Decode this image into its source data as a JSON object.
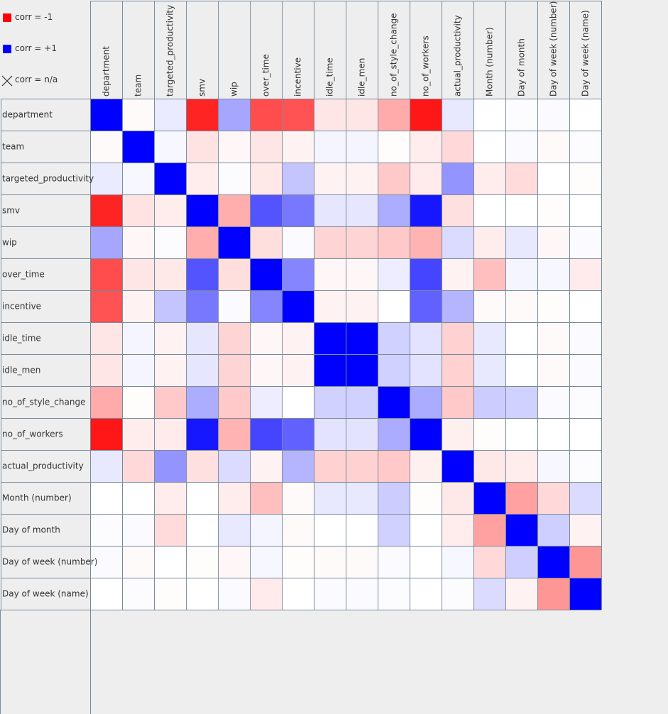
{
  "legend": {
    "neg_label": "corr = -1",
    "pos_label": "corr = +1",
    "na_label": "corr = n/a",
    "neg_color": "#ff0000",
    "pos_color": "#0000ff"
  },
  "chart_data": {
    "type": "heatmap",
    "title": "",
    "value_range": [
      -1,
      1
    ],
    "color_scale": {
      "negative": "#ff0000",
      "zero": "#ffffff",
      "positive": "#0000ff"
    },
    "variables": [
      "department",
      "team",
      "targeted_productivity",
      "smv",
      "wip",
      "over_time",
      "incentive",
      "idle_time",
      "idle_men",
      "no_of_style_change",
      "no_of_workers",
      "actual_productivity",
      "Month (number)",
      "Day of month",
      "Day of week (number)",
      "Day of week (name)"
    ],
    "matrix": [
      [
        1.0,
        -0.02,
        0.08,
        -0.86,
        0.35,
        -0.7,
        -0.68,
        -0.1,
        -0.1,
        -0.33,
        -0.91,
        0.09,
        0.0,
        0.01,
        0.02,
        0.0
      ],
      [
        -0.02,
        1.0,
        0.03,
        -0.11,
        -0.03,
        -0.1,
        -0.05,
        0.04,
        0.04,
        -0.01,
        -0.07,
        -0.15,
        0.0,
        0.02,
        -0.02,
        0.01
      ],
      [
        0.08,
        0.03,
        1.0,
        -0.07,
        0.01,
        -0.09,
        0.23,
        -0.05,
        -0.05,
        -0.21,
        -0.08,
        0.42,
        -0.07,
        -0.14,
        0.0,
        -0.01
      ],
      [
        -0.86,
        -0.11,
        -0.07,
        1.0,
        -0.32,
        0.67,
        0.53,
        0.1,
        0.1,
        0.32,
        0.91,
        -0.12,
        0.0,
        0.0,
        -0.01,
        0.0
      ],
      [
        0.35,
        -0.03,
        0.01,
        -0.32,
        1.0,
        -0.13,
        0.02,
        -0.17,
        -0.17,
        -0.21,
        -0.3,
        0.14,
        -0.07,
        0.09,
        -0.03,
        0.02
      ],
      [
        -0.7,
        -0.1,
        -0.09,
        0.67,
        -0.13,
        1.0,
        0.48,
        -0.03,
        -0.03,
        0.07,
        0.73,
        -0.05,
        -0.25,
        0.04,
        0.03,
        -0.08
      ],
      [
        -0.68,
        -0.05,
        0.23,
        0.53,
        0.02,
        0.48,
        1.0,
        -0.05,
        -0.05,
        0.0,
        0.62,
        0.29,
        -0.02,
        -0.02,
        -0.01,
        0.0
      ],
      [
        -0.1,
        0.04,
        -0.05,
        0.1,
        -0.17,
        -0.03,
        -0.05,
        1.0,
        1.0,
        0.18,
        0.11,
        -0.18,
        0.09,
        0.0,
        -0.02,
        0.02
      ],
      [
        -0.1,
        0.04,
        -0.05,
        0.1,
        -0.17,
        -0.03,
        -0.05,
        1.0,
        1.0,
        0.18,
        0.11,
        -0.18,
        0.09,
        0.0,
        -0.02,
        0.02
      ],
      [
        -0.33,
        -0.01,
        -0.21,
        0.32,
        -0.21,
        0.07,
        0.0,
        0.18,
        0.18,
        1.0,
        0.33,
        -0.21,
        0.2,
        0.18,
        0.02,
        0.01
      ],
      [
        -0.91,
        -0.07,
        -0.08,
        0.91,
        -0.3,
        0.73,
        0.62,
        0.11,
        0.11,
        0.33,
        1.0,
        -0.06,
        -0.01,
        0.0,
        0.0,
        0.0
      ],
      [
        0.09,
        -0.15,
        0.42,
        -0.12,
        0.14,
        -0.05,
        0.29,
        -0.18,
        -0.18,
        -0.21,
        -0.06,
        1.0,
        -0.09,
        -0.07,
        0.03,
        0.01
      ],
      [
        0.0,
        0.0,
        -0.07,
        0.0,
        -0.07,
        -0.25,
        -0.02,
        0.09,
        0.09,
        0.2,
        -0.01,
        -0.09,
        1.0,
        -0.37,
        -0.15,
        0.14
      ],
      [
        0.01,
        0.02,
        -0.14,
        0.0,
        0.09,
        0.04,
        -0.02,
        0.0,
        0.0,
        0.18,
        0.0,
        -0.07,
        -0.37,
        1.0,
        0.19,
        -0.05
      ],
      [
        0.02,
        -0.02,
        0.0,
        -0.01,
        -0.03,
        0.03,
        -0.01,
        -0.02,
        -0.02,
        0.02,
        0.0,
        0.03,
        -0.15,
        0.19,
        1.0,
        -0.41
      ],
      [
        0.0,
        0.01,
        -0.01,
        0.0,
        0.02,
        -0.08,
        0.0,
        0.02,
        0.02,
        0.01,
        0.0,
        0.01,
        0.14,
        -0.05,
        -0.41,
        1.0
      ]
    ]
  }
}
